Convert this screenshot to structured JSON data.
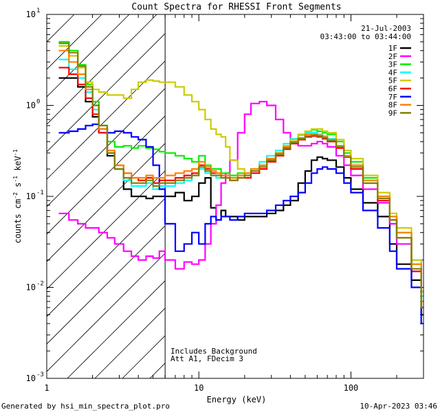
{
  "chart_data": {
    "type": "line",
    "title": "Count Spectra for RHESSI Front Segments",
    "xlabel": "Energy (keV)",
    "ylabel_parts": [
      "counts cm",
      "-2",
      " s",
      "-1",
      " keV",
      "-1"
    ],
    "xscale": "log",
    "yscale": "log",
    "xlim": [
      1,
      300
    ],
    "ylim": [
      0.001,
      10
    ],
    "x_ticks": [
      {
        "value": 1,
        "label": "1"
      },
      {
        "value": 10,
        "label": "10"
      },
      {
        "value": 100,
        "label": "100"
      }
    ],
    "y_ticks": [
      {
        "value": 0.001,
        "base": "10",
        "exp": "-3"
      },
      {
        "value": 0.01,
        "base": "10",
        "exp": "-2"
      },
      {
        "value": 0.1,
        "base": "10",
        "exp": "-1"
      },
      {
        "value": 1,
        "base": "10",
        "exp": "0"
      },
      {
        "value": 10,
        "base": "10",
        "exp": "1"
      }
    ],
    "date": "21-Jul-2003",
    "time_range": "03:43:00 to 03:44:00",
    "hatched_region_max_energy": 6,
    "annotations": [
      "Includes Background",
      "Att A1, FDecim  3"
    ],
    "series": [
      {
        "name": "1F",
        "color": "#000000",
        "x": [
          1.2,
          1.4,
          1.6,
          1.8,
          2.0,
          2.2,
          2.5,
          2.8,
          3.2,
          3.6,
          4.0,
          4.5,
          5.0,
          5.5,
          6.0,
          7.0,
          8.0,
          9.0,
          10.0,
          11.0,
          12.0,
          13.0,
          14.0,
          15.0,
          16.0,
          18.0,
          20.0,
          22.0,
          25.0,
          28.0,
          32.0,
          36.0,
          40.0,
          45.0,
          50.0,
          55.0,
          60.0,
          65.0,
          70.0,
          80.0,
          90.0,
          100.0,
          120.0,
          150.0,
          180.0,
          200.0,
          250.0,
          290.0
        ],
        "y": [
          2.0,
          2.0,
          1.6,
          1.1,
          0.75,
          0.5,
          0.28,
          0.2,
          0.12,
          0.1,
          0.1,
          0.095,
          0.1,
          0.1,
          0.1,
          0.11,
          0.09,
          0.1,
          0.14,
          0.16,
          0.075,
          0.055,
          0.07,
          0.06,
          0.06,
          0.055,
          0.06,
          0.06,
          0.06,
          0.065,
          0.07,
          0.08,
          0.09,
          0.14,
          0.19,
          0.25,
          0.27,
          0.26,
          0.25,
          0.21,
          0.16,
          0.12,
          0.085,
          0.06,
          0.03,
          0.018,
          0.012,
          0.005
        ]
      },
      {
        "name": "2F",
        "color": "#ff00ff",
        "x": [
          1.2,
          1.4,
          1.6,
          1.8,
          2.0,
          2.2,
          2.5,
          2.8,
          3.2,
          3.6,
          4.0,
          4.5,
          5.0,
          5.5,
          6.0,
          7.0,
          8.0,
          9.0,
          10.0,
          11.0,
          12.0,
          13.0,
          14.0,
          15.0,
          16.0,
          18.0,
          20.0,
          22.0,
          25.0,
          28.0,
          32.0,
          36.0,
          40.0,
          45.0,
          50.0,
          55.0,
          60.0,
          65.0,
          70.0,
          80.0,
          90.0,
          100.0,
          120.0,
          150.0,
          180.0,
          200.0,
          250.0,
          290.0
        ],
        "y": [
          0.065,
          0.055,
          0.05,
          0.045,
          0.045,
          0.04,
          0.035,
          0.03,
          0.025,
          0.022,
          0.02,
          0.022,
          0.021,
          0.025,
          0.02,
          0.016,
          0.019,
          0.018,
          0.02,
          0.03,
          0.05,
          0.08,
          0.14,
          0.18,
          0.25,
          0.5,
          0.8,
          1.05,
          1.1,
          1.0,
          0.7,
          0.5,
          0.4,
          0.36,
          0.36,
          0.38,
          0.4,
          0.38,
          0.35,
          0.28,
          0.22,
          0.17,
          0.12,
          0.085,
          0.05,
          0.03,
          0.015,
          0.006
        ]
      },
      {
        "name": "3F",
        "color": "#00ee00",
        "x": [
          1.2,
          1.4,
          1.6,
          1.8,
          2.0,
          2.2,
          2.5,
          2.8,
          3.2,
          3.6,
          4.0,
          4.5,
          5.0,
          5.5,
          6.0,
          7.0,
          8.0,
          9.0,
          10.0,
          11.0,
          12.0,
          13.0,
          14.0,
          15.0,
          16.0,
          18.0,
          20.0,
          22.0,
          25.0,
          28.0,
          32.0,
          36.0,
          40.0,
          45.0,
          50.0,
          55.0,
          60.0,
          65.0,
          70.0,
          80.0,
          90.0,
          100.0,
          120.0,
          150.0,
          180.0,
          200.0,
          250.0,
          290.0
        ],
        "y": [
          5.0,
          4.0,
          2.8,
          1.7,
          1.1,
          0.6,
          0.4,
          0.35,
          0.36,
          0.34,
          0.36,
          0.34,
          0.33,
          0.31,
          0.3,
          0.28,
          0.26,
          0.24,
          0.28,
          0.22,
          0.2,
          0.2,
          0.18,
          0.18,
          0.17,
          0.18,
          0.18,
          0.2,
          0.22,
          0.25,
          0.3,
          0.36,
          0.42,
          0.48,
          0.52,
          0.54,
          0.52,
          0.5,
          0.48,
          0.4,
          0.3,
          0.24,
          0.16,
          0.1,
          0.06,
          0.04,
          0.018,
          0.008
        ]
      },
      {
        "name": "4F",
        "color": "#00ffff",
        "x": [
          1.2,
          1.4,
          1.6,
          1.8,
          2.0,
          2.2,
          2.5,
          2.8,
          3.2,
          3.6,
          4.0,
          4.5,
          5.0,
          5.5,
          6.0,
          7.0,
          8.0,
          9.0,
          10.0,
          11.0,
          12.0,
          13.0,
          14.0,
          15.0,
          16.0,
          18.0,
          20.0,
          22.0,
          25.0,
          28.0,
          32.0,
          36.0,
          40.0,
          45.0,
          50.0,
          55.0,
          60.0,
          65.0,
          70.0,
          80.0,
          90.0,
          100.0,
          120.0,
          150.0,
          180.0,
          200.0,
          250.0,
          290.0
        ],
        "y": [
          3.2,
          2.5,
          2.0,
          1.4,
          0.9,
          0.5,
          0.3,
          0.2,
          0.15,
          0.13,
          0.13,
          0.14,
          0.12,
          0.13,
          0.13,
          0.14,
          0.15,
          0.17,
          0.2,
          0.18,
          0.17,
          0.16,
          0.16,
          0.17,
          0.16,
          0.17,
          0.18,
          0.2,
          0.24,
          0.28,
          0.32,
          0.38,
          0.43,
          0.47,
          0.5,
          0.5,
          0.48,
          0.46,
          0.43,
          0.36,
          0.28,
          0.22,
          0.15,
          0.1,
          0.06,
          0.04,
          0.02,
          0.008
        ]
      },
      {
        "name": "5F",
        "color": "#cccc00",
        "x": [
          1.2,
          1.4,
          1.6,
          1.8,
          2.0,
          2.2,
          2.5,
          2.8,
          3.2,
          3.6,
          4.0,
          4.5,
          5.0,
          5.5,
          6.0,
          7.0,
          8.0,
          9.0,
          10.0,
          11.0,
          12.0,
          13.0,
          14.0,
          15.0,
          16.0,
          18.0,
          20.0,
          22.0,
          25.0,
          28.0,
          32.0,
          36.0,
          40.0,
          45.0,
          50.0,
          55.0,
          60.0,
          65.0,
          70.0,
          80.0,
          90.0,
          100.0,
          120.0,
          150.0,
          180.0,
          200.0,
          250.0,
          290.0
        ],
        "y": [
          4.5,
          3.5,
          2.6,
          1.8,
          1.5,
          1.4,
          1.3,
          1.3,
          1.2,
          1.5,
          1.8,
          1.9,
          1.85,
          1.8,
          1.8,
          1.6,
          1.3,
          1.1,
          0.9,
          0.7,
          0.55,
          0.48,
          0.45,
          0.35,
          0.25,
          0.2,
          0.18,
          0.2,
          0.22,
          0.26,
          0.3,
          0.36,
          0.42,
          0.48,
          0.52,
          0.55,
          0.55,
          0.52,
          0.5,
          0.42,
          0.32,
          0.26,
          0.17,
          0.11,
          0.065,
          0.045,
          0.02,
          0.009
        ]
      },
      {
        "name": "6F",
        "color": "#ff0000",
        "x": [
          1.2,
          1.4,
          1.6,
          1.8,
          2.0,
          2.2,
          2.5,
          2.8,
          3.2,
          3.6,
          4.0,
          4.5,
          5.0,
          5.5,
          6.0,
          7.0,
          8.0,
          9.0,
          10.0,
          11.0,
          12.0,
          13.0,
          14.0,
          15.0,
          16.0,
          18.0,
          20.0,
          22.0,
          25.0,
          28.0,
          32.0,
          36.0,
          40.0,
          45.0,
          50.0,
          55.0,
          60.0,
          65.0,
          70.0,
          80.0,
          90.0,
          100.0,
          120.0,
          150.0,
          180.0,
          200.0,
          250.0,
          290.0
        ],
        "y": [
          2.6,
          2.2,
          1.7,
          1.2,
          0.8,
          0.5,
          0.3,
          0.22,
          0.18,
          0.16,
          0.15,
          0.16,
          0.14,
          0.15,
          0.15,
          0.16,
          0.17,
          0.18,
          0.22,
          0.2,
          0.18,
          0.18,
          0.17,
          0.16,
          0.15,
          0.16,
          0.16,
          0.18,
          0.2,
          0.24,
          0.28,
          0.33,
          0.38,
          0.42,
          0.45,
          0.46,
          0.45,
          0.43,
          0.4,
          0.34,
          0.27,
          0.2,
          0.14,
          0.09,
          0.055,
          0.035,
          0.015,
          0.006
        ]
      },
      {
        "name": "7F",
        "color": "#0000ff",
        "x": [
          1.2,
          1.4,
          1.6,
          1.8,
          2.0,
          2.2,
          2.5,
          2.8,
          3.2,
          3.6,
          4.0,
          4.5,
          5.0,
          5.5,
          6.0,
          7.0,
          8.0,
          9.0,
          10.0,
          11.0,
          12.0,
          13.0,
          14.0,
          15.0,
          16.0,
          18.0,
          20.0,
          22.0,
          25.0,
          28.0,
          32.0,
          36.0,
          40.0,
          45.0,
          50.0,
          55.0,
          60.0,
          65.0,
          70.0,
          80.0,
          90.0,
          100.0,
          120.0,
          150.0,
          180.0,
          200.0,
          250.0,
          290.0
        ],
        "y": [
          0.5,
          0.52,
          0.55,
          0.6,
          0.62,
          0.55,
          0.5,
          0.52,
          0.5,
          0.45,
          0.42,
          0.35,
          0.22,
          0.12,
          0.05,
          0.025,
          0.03,
          0.04,
          0.03,
          0.05,
          0.06,
          0.055,
          0.06,
          0.06,
          0.055,
          0.06,
          0.065,
          0.065,
          0.065,
          0.07,
          0.08,
          0.09,
          0.1,
          0.11,
          0.14,
          0.18,
          0.2,
          0.21,
          0.2,
          0.18,
          0.14,
          0.11,
          0.07,
          0.045,
          0.025,
          0.016,
          0.01,
          0.004
        ]
      },
      {
        "name": "8F",
        "color": "#ff8000",
        "x": [
          1.2,
          1.4,
          1.6,
          1.8,
          2.0,
          2.2,
          2.5,
          2.8,
          3.2,
          3.6,
          4.0,
          4.5,
          5.0,
          5.5,
          6.0,
          7.0,
          8.0,
          9.0,
          10.0,
          11.0,
          12.0,
          13.0,
          14.0,
          15.0,
          16.0,
          18.0,
          20.0,
          22.0,
          25.0,
          28.0,
          32.0,
          36.0,
          40.0,
          45.0,
          50.0,
          55.0,
          60.0,
          65.0,
          70.0,
          80.0,
          90.0,
          100.0,
          120.0,
          150.0,
          180.0,
          200.0,
          250.0,
          290.0
        ],
        "y": [
          4.0,
          3.0,
          2.2,
          1.5,
          1.0,
          0.55,
          0.32,
          0.22,
          0.18,
          0.16,
          0.16,
          0.17,
          0.16,
          0.16,
          0.17,
          0.18,
          0.19,
          0.2,
          0.24,
          0.21,
          0.19,
          0.18,
          0.17,
          0.17,
          0.16,
          0.17,
          0.18,
          0.2,
          0.22,
          0.26,
          0.3,
          0.35,
          0.4,
          0.44,
          0.48,
          0.48,
          0.47,
          0.45,
          0.42,
          0.36,
          0.28,
          0.22,
          0.15,
          0.1,
          0.06,
          0.04,
          0.018,
          0.007
        ]
      },
      {
        "name": "9F",
        "color": "#808000",
        "x": [
          1.2,
          1.4,
          1.6,
          1.8,
          2.0,
          2.2,
          2.5,
          2.8,
          3.2,
          3.6,
          4.0,
          4.5,
          5.0,
          5.5,
          6.0,
          7.0,
          8.0,
          9.0,
          10.0,
          11.0,
          12.0,
          13.0,
          14.0,
          15.0,
          16.0,
          18.0,
          20.0,
          22.0,
          25.0,
          28.0,
          32.0,
          36.0,
          40.0,
          45.0,
          50.0,
          55.0,
          60.0,
          65.0,
          70.0,
          80.0,
          90.0,
          100.0,
          120.0,
          150.0,
          180.0,
          200.0,
          250.0,
          290.0
        ],
        "y": [
          4.8,
          3.8,
          2.7,
          1.6,
          1.0,
          0.6,
          0.3,
          0.2,
          0.16,
          0.14,
          0.14,
          0.15,
          0.13,
          0.14,
          0.14,
          0.15,
          0.16,
          0.17,
          0.21,
          0.19,
          0.17,
          0.17,
          0.16,
          0.16,
          0.15,
          0.16,
          0.17,
          0.19,
          0.21,
          0.25,
          0.29,
          0.34,
          0.39,
          0.43,
          0.46,
          0.47,
          0.46,
          0.44,
          0.41,
          0.35,
          0.27,
          0.21,
          0.14,
          0.095,
          0.055,
          0.035,
          0.016,
          0.006
        ]
      }
    ]
  },
  "footer": {
    "left": "Generated by hsi_min_spectra_plot.pro",
    "right": "10-Apr-2023 03:46"
  }
}
